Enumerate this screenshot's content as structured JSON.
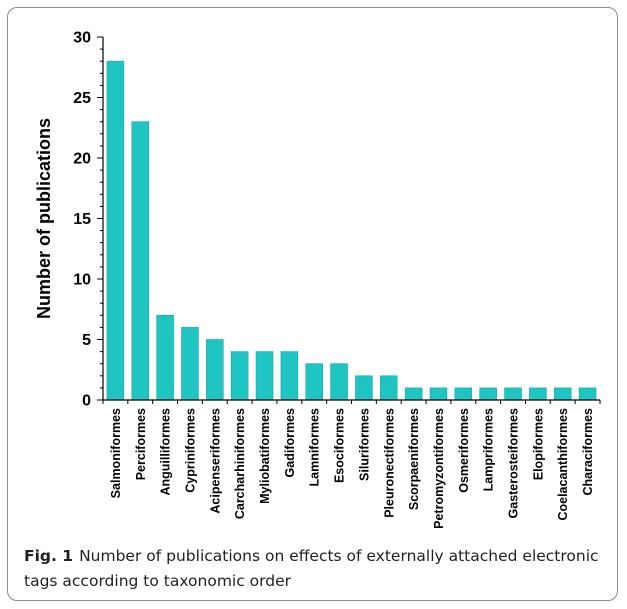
{
  "caption": {
    "label": "Fig. 1",
    "text": "Number of publications on effects of externally attached electronic tags according to taxonomic order"
  },
  "colors": {
    "bar": "#1fc5c2",
    "bar_edge": "#14a7a4",
    "axis": "#000000",
    "frame": "#8c8c8c"
  },
  "chart_data": {
    "type": "bar",
    "title": "",
    "xlabel": "",
    "ylabel": "Number of publications",
    "ylim": [
      0,
      30
    ],
    "yticks": [
      0,
      5,
      10,
      15,
      20,
      25,
      30
    ],
    "grid": false,
    "categories": [
      "Salmoniformes",
      "Perciformes",
      "Anguilliformes",
      "Cypriniformes",
      "Acipenseriformes",
      "Carcharhiniformes",
      "Myliobatiformes",
      "Gadiformes",
      "Lamniformes",
      "Esociformes",
      "Siluriformes",
      "Pleuronectiformes",
      "Scorpaeniformes",
      "Petromyzontiformes",
      "Osmeriformes",
      "Lampriformes",
      "Gasterosteiformes",
      "Elopiformes",
      "Coelacanthiformes",
      "Characiformes"
    ],
    "values": [
      28,
      23,
      7,
      6,
      5,
      4,
      4,
      4,
      3,
      3,
      2,
      2,
      1,
      1,
      1,
      1,
      1,
      1,
      1,
      1
    ]
  }
}
